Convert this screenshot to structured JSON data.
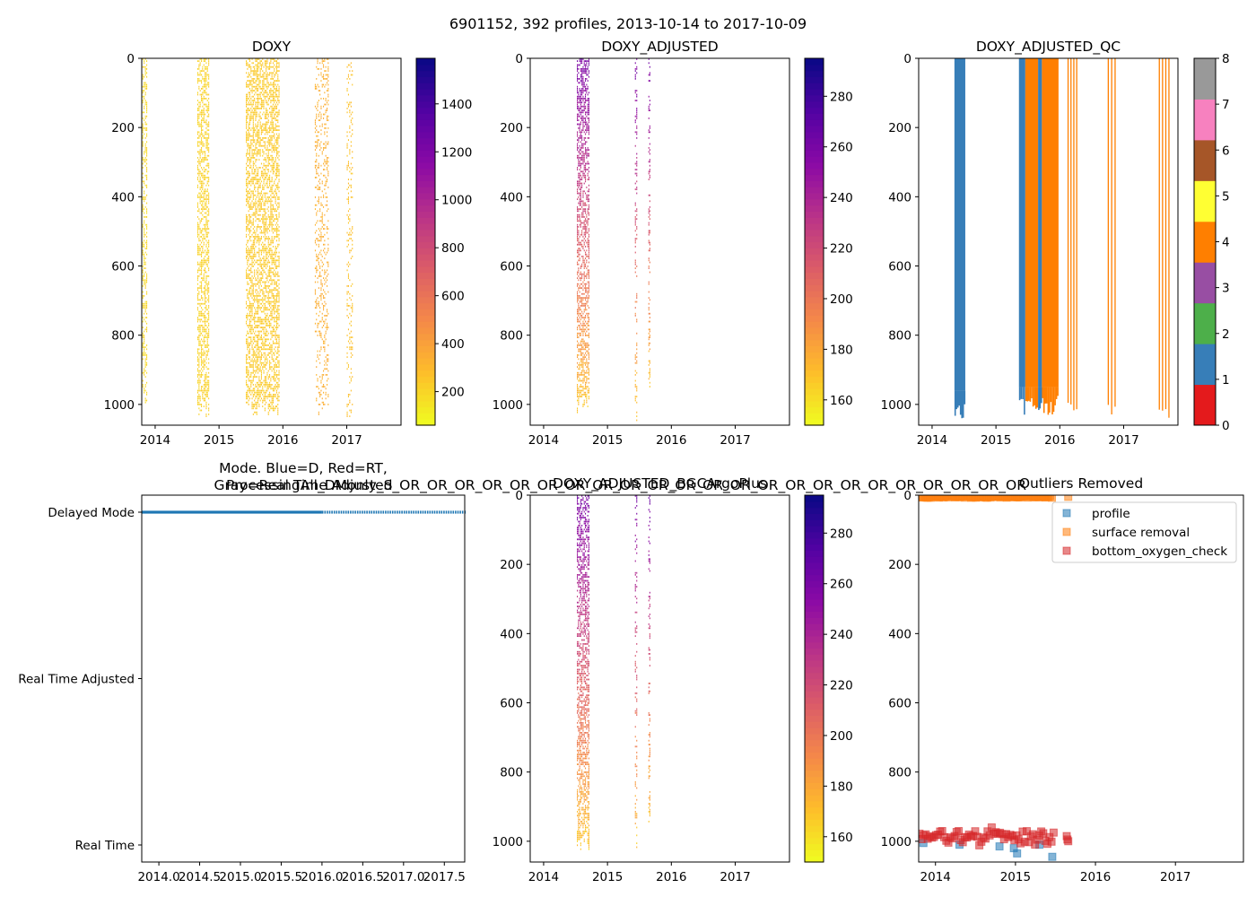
{
  "figure": {
    "title": "6901152, 392 profiles, 2013-10-14 to 2017-10-09"
  },
  "chart_data": [
    {
      "type": "heatmap",
      "title": "DOXY",
      "x_ticks": [
        "2014",
        "2015",
        "2016",
        "2017"
      ],
      "x_range": [
        2013.79,
        2017.85
      ],
      "y_ticks": [
        "0",
        "200",
        "400",
        "600",
        "800",
        "1000"
      ],
      "y_range": [
        1060,
        0
      ],
      "colorbar": {
        "cmap": "plasma_r",
        "range": [
          60,
          1590
        ],
        "ticks": [
          "200",
          "400",
          "600",
          "800",
          "1000",
          "1200",
          "1400"
        ],
        "tick_values": [
          200,
          400,
          600,
          800,
          1000,
          1200,
          1400
        ]
      },
      "bands": [
        {
          "start": 2013.8,
          "end": 2013.88,
          "depth": 1000,
          "value": 180,
          "density": 0.45
        },
        {
          "start": 2014.66,
          "end": 2014.85,
          "depth": 1040,
          "value": 200,
          "density": 0.55
        },
        {
          "start": 2015.42,
          "end": 2015.95,
          "depth": 1040,
          "value": 230,
          "density": 0.55
        },
        {
          "start": 2016.5,
          "end": 2016.72,
          "depth": 1040,
          "value": 330,
          "density": 0.25
        },
        {
          "start": 2017.0,
          "end": 2017.1,
          "depth": 1050,
          "value": 260,
          "density": 0.25
        }
      ]
    },
    {
      "type": "heatmap",
      "title": "DOXY_ADJUSTED",
      "x_ticks": [
        "2014",
        "2015",
        "2016",
        "2017"
      ],
      "x_range": [
        2013.79,
        2017.85
      ],
      "y_ticks": [
        "0",
        "200",
        "400",
        "600",
        "800",
        "1000"
      ],
      "y_range": [
        1060,
        0
      ],
      "colorbar": {
        "cmap": "plasma_r",
        "range": [
          150,
          295
        ],
        "ticks": [
          "160",
          "180",
          "200",
          "220",
          "240",
          "260",
          "280"
        ],
        "tick_values": [
          160,
          180,
          200,
          220,
          240,
          260,
          280
        ]
      },
      "bands": [
        {
          "start": 2014.52,
          "end": 2014.72,
          "depth": 1030,
          "surface_value": 262,
          "deep_value": 165,
          "density": 0.55
        },
        {
          "start": 2015.43,
          "end": 2015.47,
          "depth": 1050,
          "surface_value": 262,
          "deep_value": 165,
          "density": 0.3
        },
        {
          "start": 2015.64,
          "end": 2015.67,
          "depth": 980,
          "surface_value": 262,
          "deep_value": 165,
          "density": 0.3
        }
      ]
    },
    {
      "type": "heatmap",
      "title": "DOXY_ADJUSTED_QC",
      "x_ticks": [
        "2014",
        "2015",
        "2016",
        "2017"
      ],
      "x_range": [
        2013.79,
        2017.85
      ],
      "y_ticks": [
        "0",
        "200",
        "400",
        "600",
        "800",
        "1000"
      ],
      "y_range": [
        1060,
        0
      ],
      "colorbar": {
        "type": "discrete",
        "range": [
          0,
          8
        ],
        "ticks": [
          "0",
          "1",
          "2",
          "3",
          "4",
          "5",
          "6",
          "7",
          "8"
        ],
        "colors": [
          "#e41a1c",
          "#377eb8",
          "#4daf4a",
          "#984ea3",
          "#ff7f00",
          "#ffff33",
          "#a65628",
          "#f781bf",
          "#999999"
        ]
      },
      "blocks": [
        {
          "start": 2014.35,
          "end": 2014.52,
          "qc": 1,
          "depth": 1040
        },
        {
          "start": 2015.36,
          "end": 2015.46,
          "qc": 1,
          "depth": 1030
        },
        {
          "start": 2015.46,
          "end": 2015.66,
          "qc": 4,
          "depth": 1030
        },
        {
          "start": 2015.66,
          "end": 2015.72,
          "qc": 1,
          "depth": 1030
        },
        {
          "start": 2015.72,
          "end": 2015.98,
          "qc": 4,
          "depth": 1030
        },
        {
          "start": 2016.12,
          "end": 2016.3,
          "qc": 4,
          "depth": 1020,
          "striped": true
        },
        {
          "start": 2016.75,
          "end": 2016.91,
          "qc": 4,
          "depth": 1030,
          "striped": true
        },
        {
          "start": 2017.55,
          "end": 2017.75,
          "qc": 4,
          "depth": 1040,
          "striped": true
        }
      ]
    },
    {
      "type": "scatter",
      "title_lines": [
        "Mode. Blue=D, Red=RT,",
        "Gray=Real Time Adjusted"
      ],
      "overlapping_title": "ProcessingAll_DMonly_S_OR_OR_OR_OR_OR_OR_OR_OR_OR_OR_OR_OR_OR_OR_OR_OR_OR_OR_OR_OR_OR_OR_OR",
      "x_ticks": [
        "2014.0",
        "2014.5",
        "2015.0",
        "2015.5",
        "2016.0",
        "2016.5",
        "2017.0",
        "2017.5"
      ],
      "x_range": [
        2013.79,
        2017.75
      ],
      "y_categories": [
        "Real Time",
        "Real Time Adjusted",
        "Delayed Mode"
      ],
      "series": [
        {
          "name": "Delayed Mode",
          "category": "Delayed Mode",
          "x_start": 2013.79,
          "x_end": 2017.75,
          "solid_until": 2016.0,
          "color": "#1f77b4"
        }
      ]
    },
    {
      "type": "heatmap",
      "title": "DOXY_ADJUSTED_BGCArgoPlus",
      "x_ticks": [
        "2014",
        "2015",
        "2016",
        "2017"
      ],
      "x_range": [
        2013.79,
        2017.85
      ],
      "y_ticks": [
        "0",
        "200",
        "400",
        "600",
        "800",
        "1000"
      ],
      "y_range": [
        1060,
        0
      ],
      "colorbar": {
        "cmap": "plasma_r",
        "range": [
          150,
          295
        ],
        "ticks": [
          "160",
          "180",
          "200",
          "220",
          "240",
          "260",
          "280"
        ],
        "tick_values": [
          160,
          180,
          200,
          220,
          240,
          260,
          280
        ]
      },
      "bands": [
        {
          "start": 2014.52,
          "end": 2014.72,
          "depth": 1030,
          "surface_value": 262,
          "deep_value": 165,
          "density": 0.55
        },
        {
          "start": 2015.43,
          "end": 2015.47,
          "depth": 1050,
          "surface_value": 262,
          "deep_value": 165,
          "density": 0.3
        },
        {
          "start": 2015.64,
          "end": 2015.67,
          "depth": 980,
          "surface_value": 262,
          "deep_value": 165,
          "density": 0.3
        }
      ]
    },
    {
      "type": "scatter",
      "title": "Outliers Removed",
      "x_ticks": [
        "2014",
        "2015",
        "2016",
        "2017"
      ],
      "x_range": [
        2013.79,
        2017.85
      ],
      "y_ticks": [
        "0",
        "200",
        "400",
        "600",
        "800",
        "1000"
      ],
      "y_range": [
        1060,
        0
      ],
      "legend": {
        "location": "upper right",
        "entries": [
          "profile",
          "surface removal",
          "bottom_oxygen_check"
        ]
      },
      "series": [
        {
          "name": "profile",
          "color": "#1f77b4",
          "points": [
            [
              2013.85,
              1005
            ],
            [
              2014.3,
              1010
            ],
            [
              2014.8,
              1015
            ],
            [
              2014.98,
              1020
            ],
            [
              2015.02,
              1035
            ],
            [
              2015.3,
              1010
            ],
            [
              2015.46,
              1045
            ]
          ]
        },
        {
          "name": "surface removal",
          "color": "#ff7f0e",
          "x_start": 2013.8,
          "x_end": 2015.46,
          "depth": 5,
          "extra_points": [
            [
              2015.66,
              5
            ]
          ]
        },
        {
          "name": "bottom_oxygen_check",
          "color": "#d62728",
          "x_start": 2013.8,
          "x_end": 2015.48,
          "depth_min": 960,
          "depth_max": 1050,
          "extra_points": [
            [
              2015.64,
              985
            ],
            [
              2015.66,
              1000
            ],
            [
              2015.65,
              995
            ]
          ]
        }
      ]
    }
  ]
}
